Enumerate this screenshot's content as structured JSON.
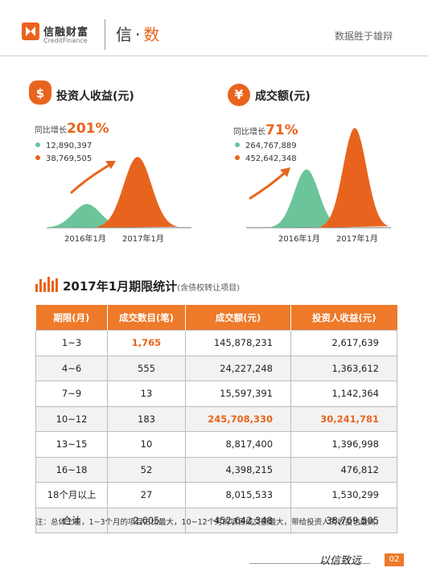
{
  "header": {
    "logo_cn": "信融财富",
    "logo_en": "CreditFinance",
    "slogan_a": "信",
    "slogan_dot": "·",
    "slogan_b": "数",
    "tagline": "数据胜于雄辩"
  },
  "investor": {
    "title": "投资人收益(元)",
    "growth_label": "同比增长",
    "growth_value": "201%",
    "legend": [
      {
        "color": "#6cc49a",
        "value": "12,890,397"
      },
      {
        "color": "#e8641e",
        "value": "38,769,505"
      }
    ]
  },
  "deal": {
    "title": "成交额(元)",
    "growth_label": "同比增长",
    "growth_value": "71%",
    "legend": [
      {
        "color": "#6cc49a",
        "value": "264,767,889"
      },
      {
        "color": "#e8641e",
        "value": "452,642,348"
      }
    ]
  },
  "chart_data": [
    {
      "type": "area",
      "categories": [
        "2016年1月",
        "2017年1月"
      ],
      "values": [
        12890397,
        38769505
      ],
      "title": "投资人收益(元)",
      "colors": [
        "#6cc49a",
        "#e8641e"
      ]
    },
    {
      "type": "area",
      "categories": [
        "2016年1月",
        "2017年1月"
      ],
      "values": [
        264767889,
        452642348
      ],
      "title": "成交额(元)",
      "colors": [
        "#6cc49a",
        "#e8641e"
      ]
    }
  ],
  "table": {
    "title": "2017年1月期限统计",
    "subtitle": "(含债权转让项目)",
    "headers": [
      "期限(月)",
      "成交数目(笔)",
      "成交额(元)",
      "投资人收益(元)"
    ],
    "rows": [
      [
        "1~3",
        "1,765",
        "145,878,231",
        "2,617,639"
      ],
      [
        "4~6",
        "555",
        "24,227,248",
        "1,363,612"
      ],
      [
        "7~9",
        "13",
        "15,597,391",
        "1,142,364"
      ],
      [
        "10~12",
        "183",
        "245,708,330",
        "30,241,781"
      ],
      [
        "13~15",
        "10",
        "8,817,400",
        "1,396,998"
      ],
      [
        "16~18",
        "52",
        "4,398,215",
        "476,812"
      ],
      [
        "18个月以上",
        "27",
        "8,015,533",
        "1,530,299"
      ],
      [
        "合计",
        "2,605",
        "452,642,348",
        "38,769,505"
      ]
    ],
    "note": "注：总体上看，1~3个月的项目占比最大，10~12个月的项目成交额最大，带给投资人的收益也最高。"
  },
  "footer": {
    "signature": "以信致远",
    "page": "02"
  }
}
